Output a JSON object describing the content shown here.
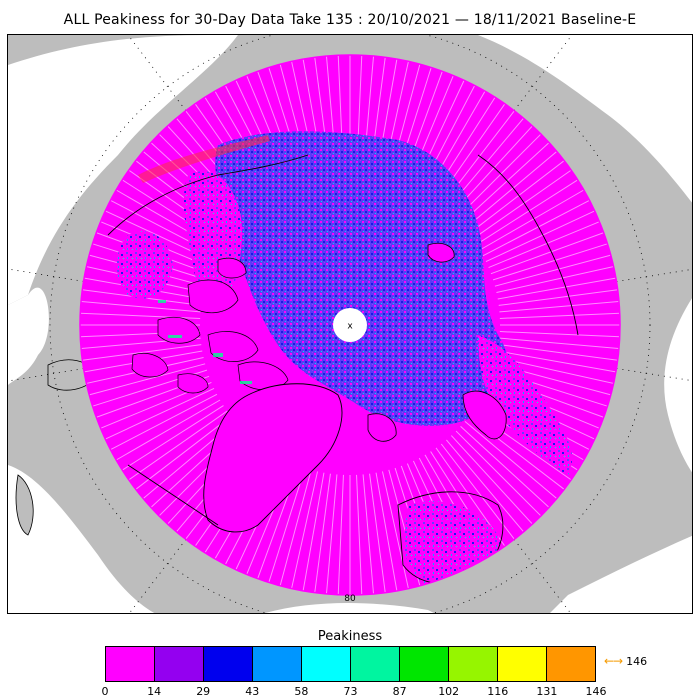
{
  "title": "ALL Peakiness for 30-Day Data Take 135 : 20/10/2021 — 18/11/2021 Baseline-E",
  "map": {
    "projection": "north-polar-stereographic",
    "pole_marker": "x",
    "latitude_label": "80",
    "colors": {
      "land": "#bdbdbd",
      "coastline": "#000000",
      "no_data": "#ffffff",
      "dominant_value": "#ff00ff"
    }
  },
  "legend": {
    "title": "Peakiness",
    "ticks": [
      "0",
      "14",
      "29",
      "43",
      "58",
      "73",
      "87",
      "102",
      "116",
      "131",
      "146"
    ],
    "colors": [
      "#ff00ff",
      "#9400f0",
      "#0000ee",
      "#0096ff",
      "#00ffff",
      "#00f5a0",
      "#00e600",
      "#96f500",
      "#ffff00",
      "#ff9600"
    ],
    "overflow_arrow": "←→",
    "overflow_value": "146"
  }
}
